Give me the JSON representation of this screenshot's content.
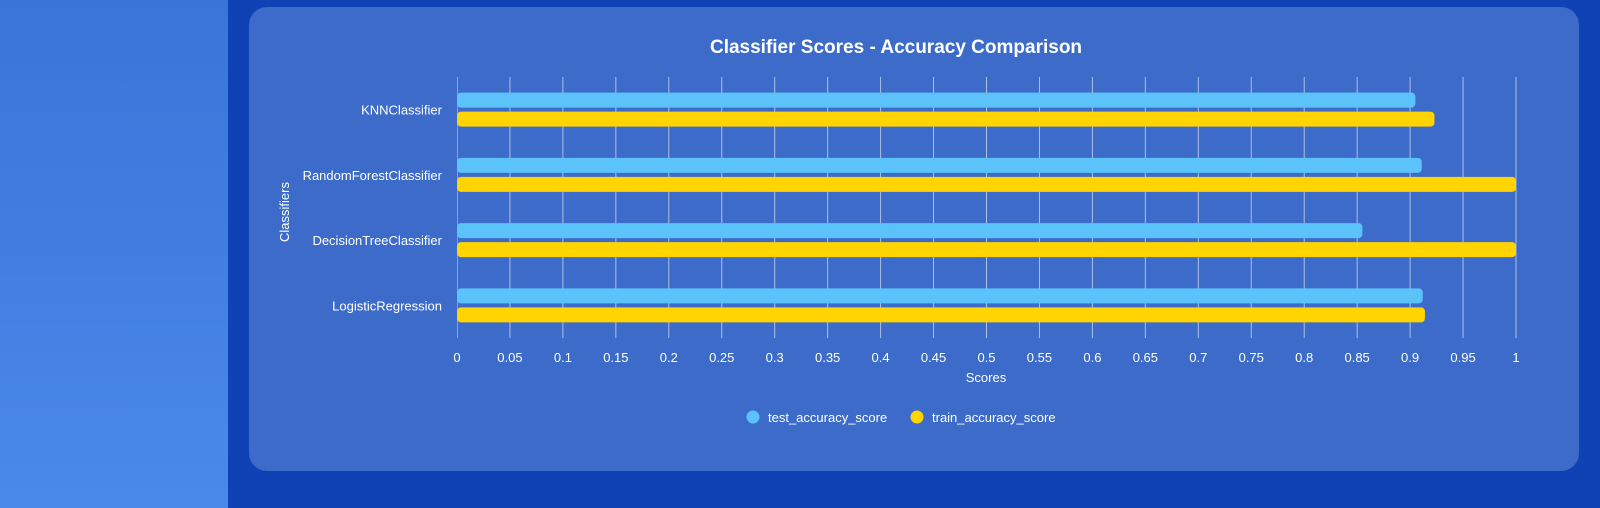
{
  "chart_data": {
    "type": "bar",
    "orientation": "horizontal",
    "title": "Classifier Scores - Accuracy Comparison",
    "xlabel": "Scores",
    "ylabel": "Classifiers",
    "categories": [
      "KNNClassifier",
      "RandomForestClassifier",
      "DecisionTreeClassifier",
      "LogisticRegression"
    ],
    "series": [
      {
        "name": "test_accuracy_score",
        "color": "#5bc2fa",
        "values": [
          0.905,
          0.911,
          0.855,
          0.912
        ]
      },
      {
        "name": "train_accuracy_score",
        "color": "#ffd400",
        "values": [
          0.923,
          1.0,
          1.0,
          0.914
        ]
      }
    ],
    "xlim": [
      0,
      1
    ],
    "xticks": [
      0,
      0.05,
      0.1,
      0.15,
      0.2,
      0.25,
      0.3,
      0.35,
      0.4,
      0.45,
      0.5,
      0.55,
      0.6,
      0.65,
      0.7,
      0.75,
      0.8,
      0.85,
      0.9,
      0.95,
      1
    ],
    "xtick_labels": [
      "0",
      "0.05",
      "0.1",
      "0.15",
      "0.2",
      "0.25",
      "0.3",
      "0.35",
      "0.4",
      "0.45",
      "0.5",
      "0.55",
      "0.6",
      "0.65",
      "0.7",
      "0.75",
      "0.8",
      "0.85",
      "0.9",
      "0.95",
      "1"
    ],
    "grid": "vertical",
    "legend_position": "bottom"
  }
}
